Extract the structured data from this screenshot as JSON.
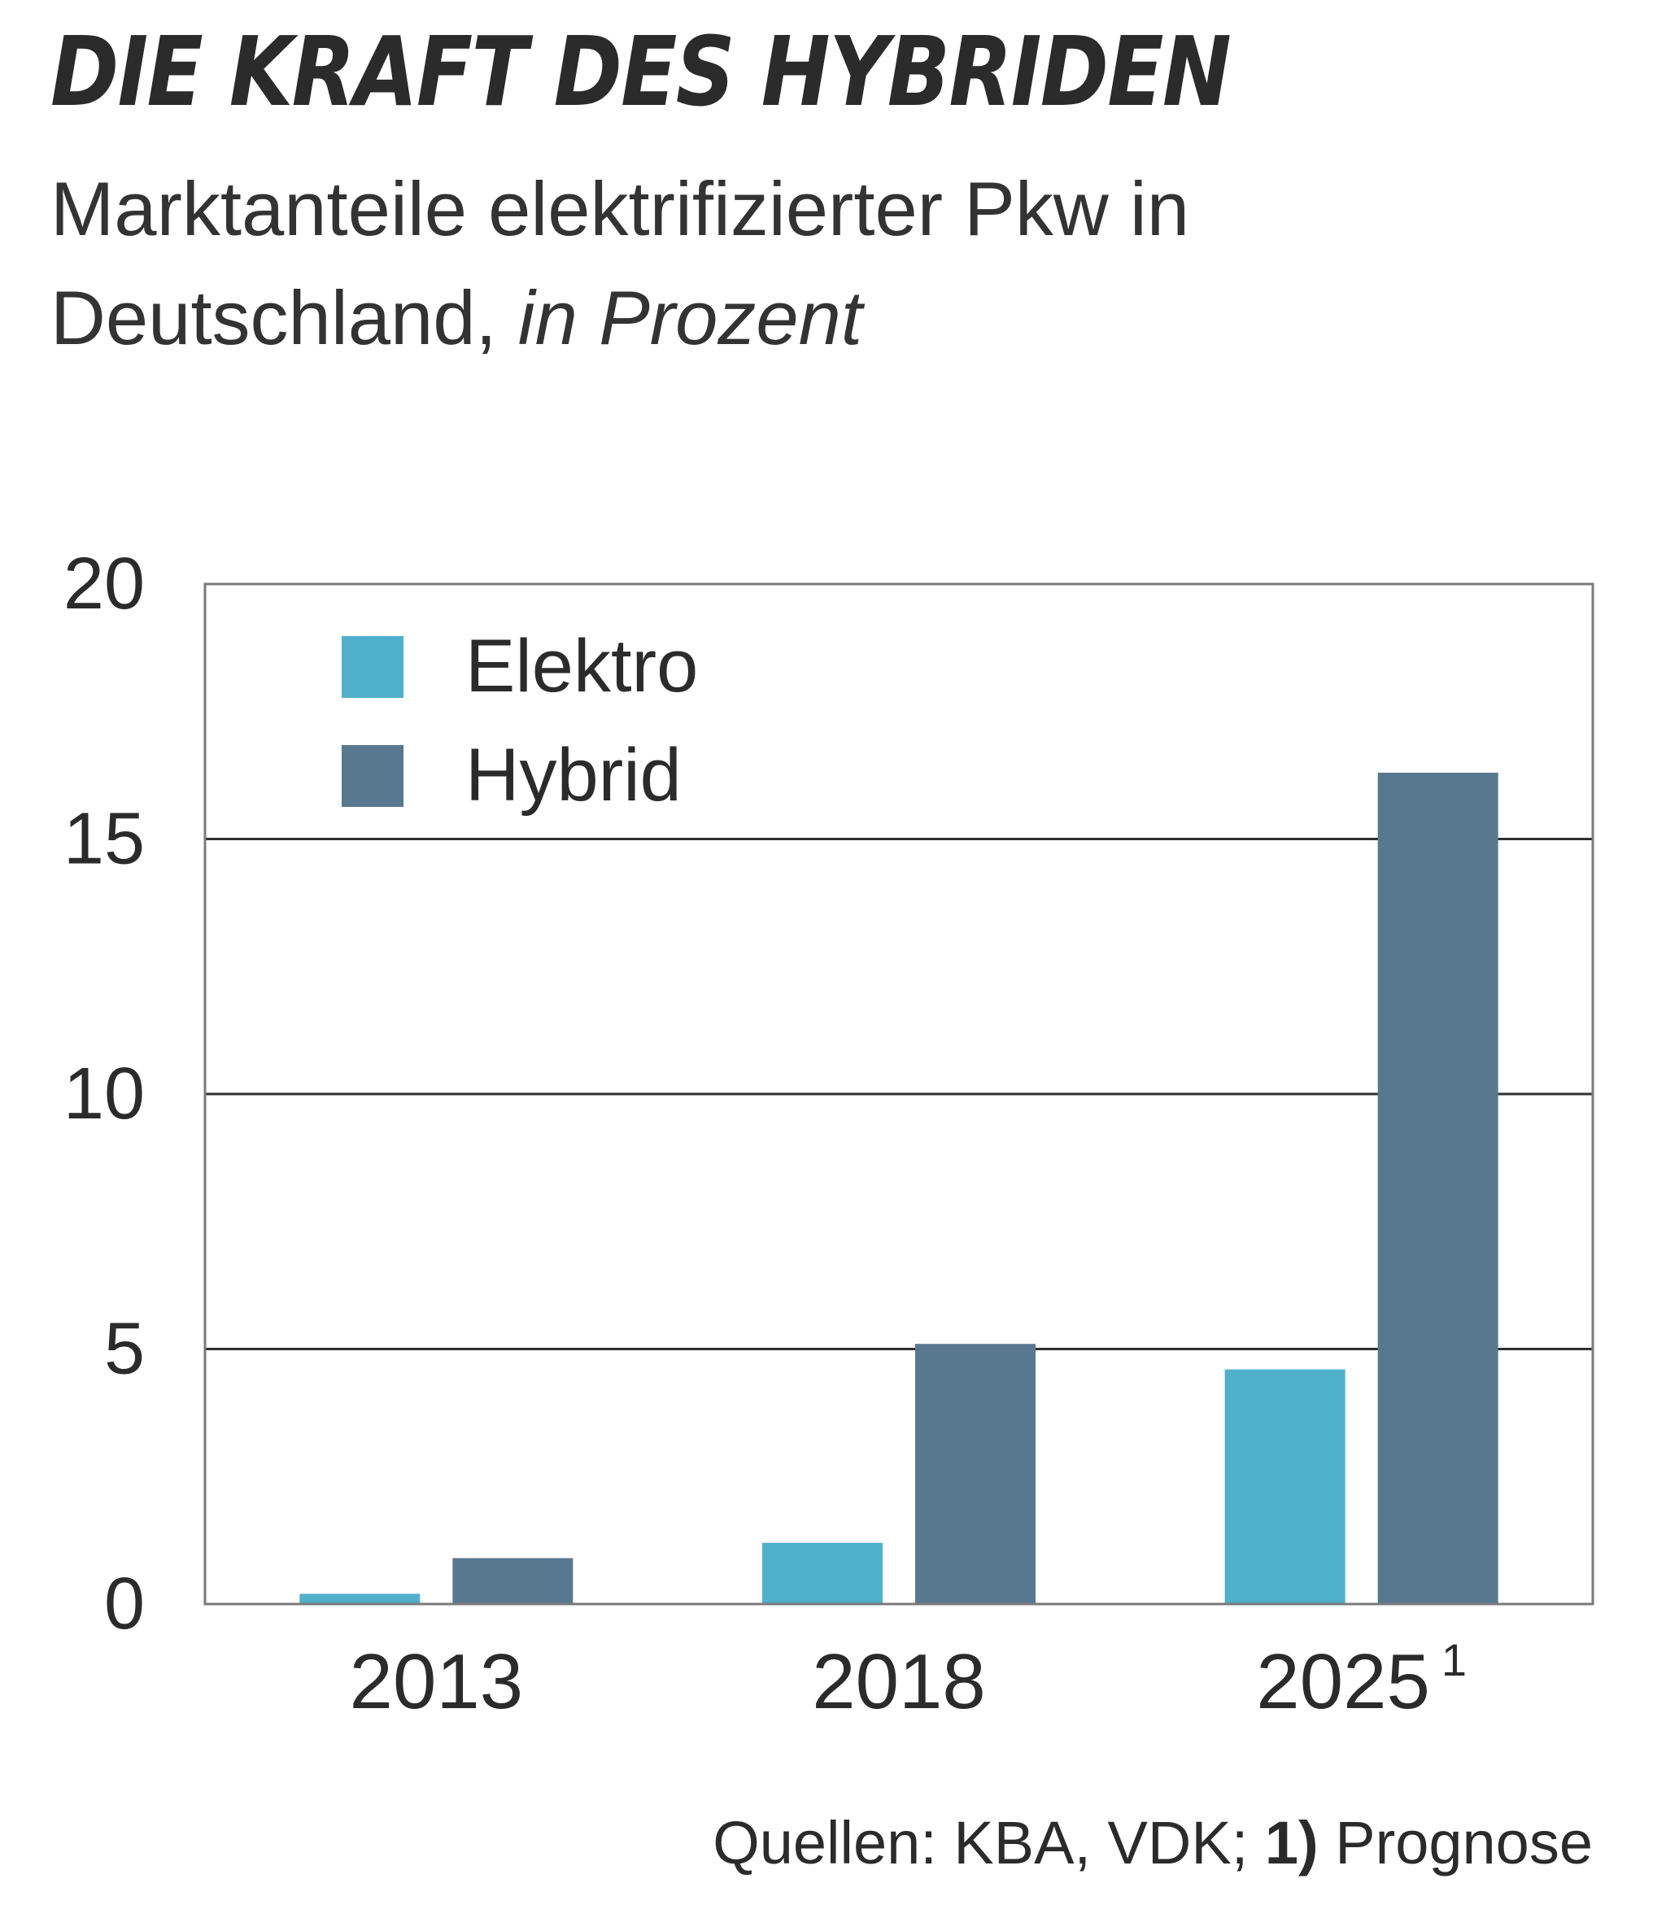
{
  "title": "DIE KRAFT DES HYBRIDEN",
  "subtitle": {
    "main": "Marktanteile elektrifizierter Pkw in Deutschland,",
    "unit": "in Prozent"
  },
  "source": {
    "prefix": "Quellen: KBA, VDK;",
    "footnote_number": "1)",
    "footnote_text": "Prognose"
  },
  "chart_data": {
    "type": "bar",
    "categories": [
      "2013",
      "2018",
      "2025"
    ],
    "category_superscripts": [
      "",
      "",
      "1"
    ],
    "series": [
      {
        "name": "Elektro",
        "color": "#4FB0CB",
        "values": [
          0.2,
          1.2,
          4.6
        ]
      },
      {
        "name": "Hybrid",
        "color": "#587890",
        "values": [
          0.9,
          5.1,
          16.3
        ]
      }
    ],
    "ylim": [
      0,
      20
    ],
    "yticks": [
      "0",
      "5",
      "10",
      "15",
      "20"
    ],
    "grid": true,
    "legend": "top-left"
  }
}
